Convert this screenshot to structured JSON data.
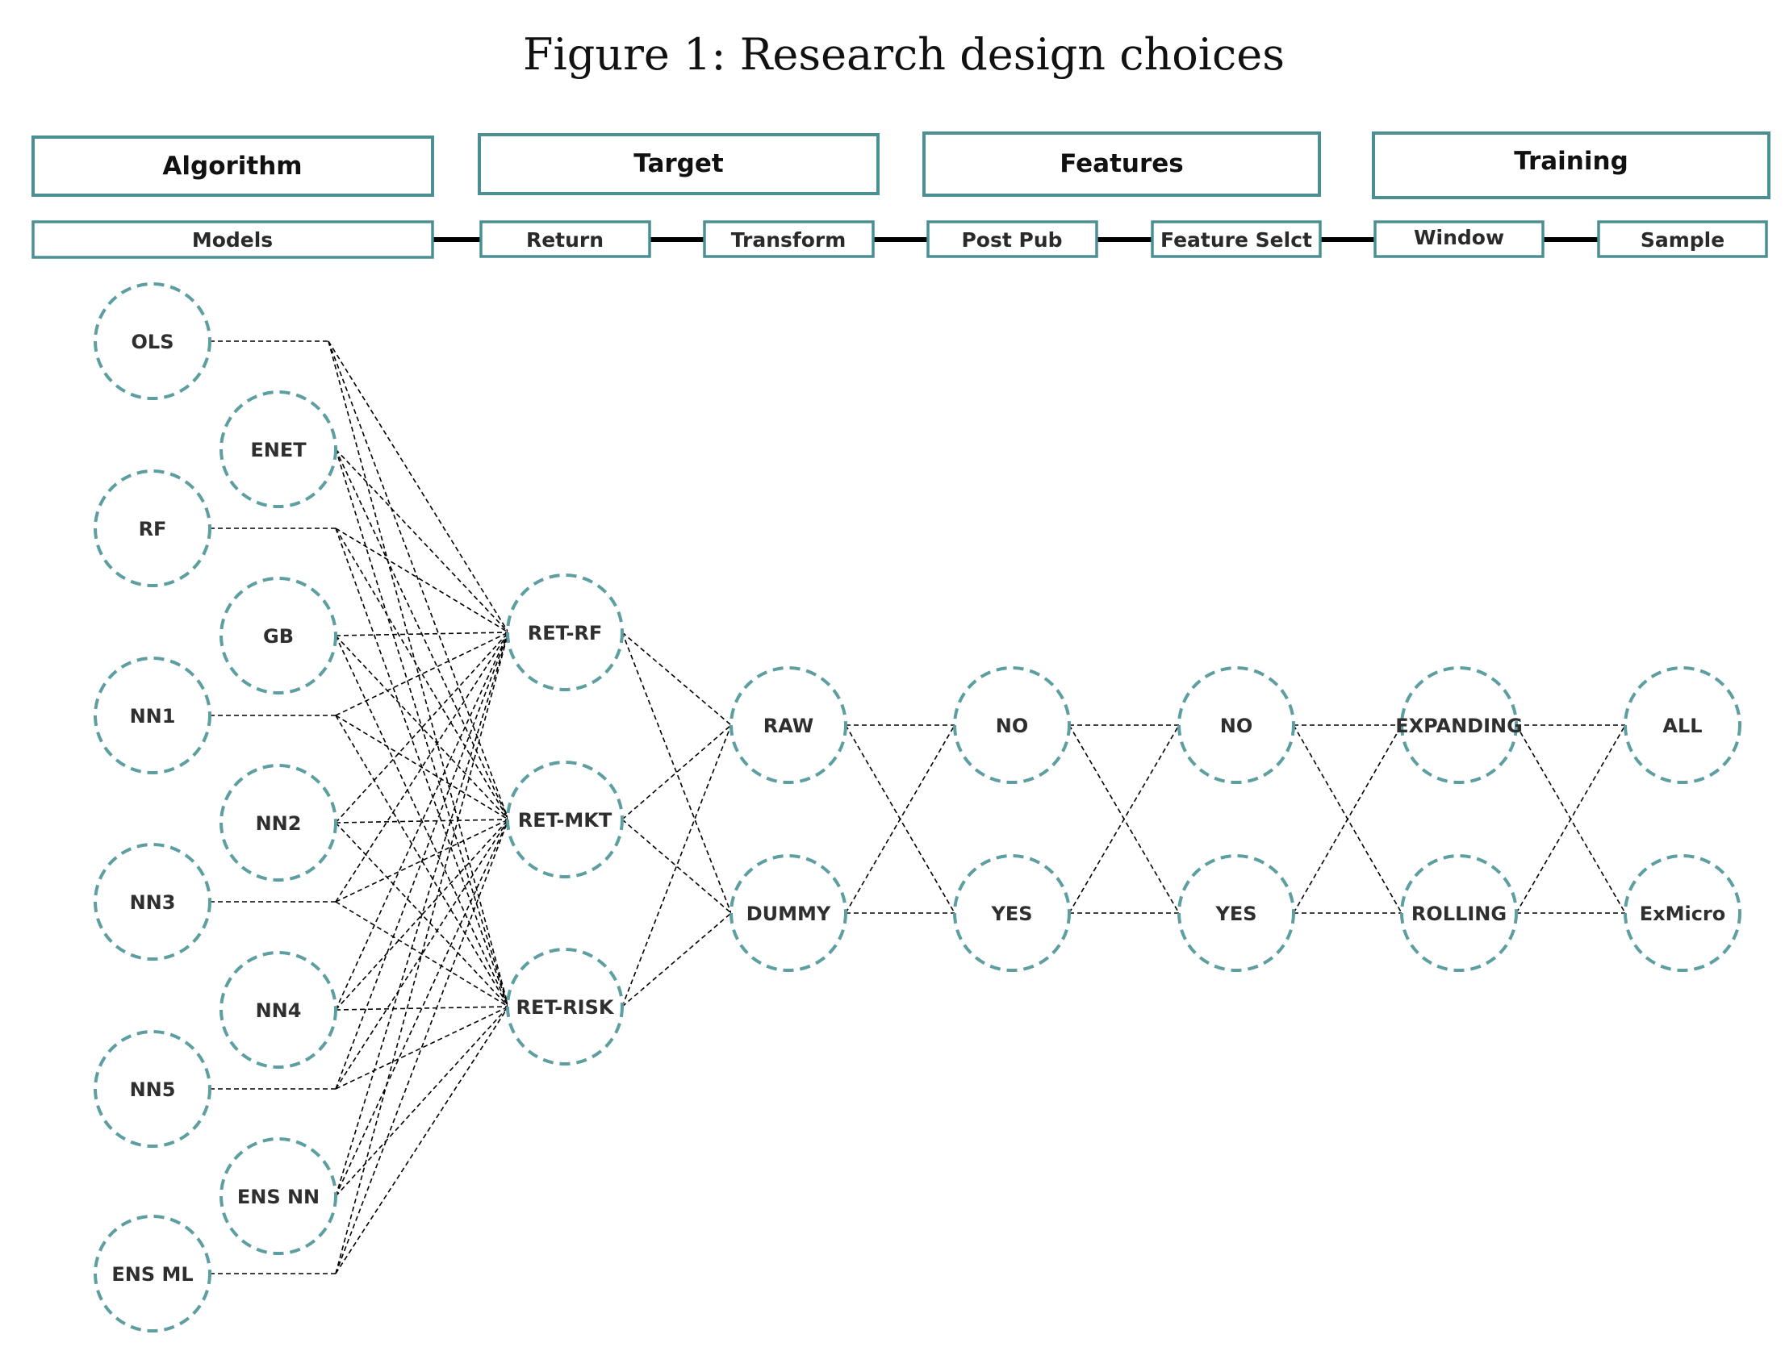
{
  "title": "Figure 1: Research design choices",
  "colors": {
    "accent": "#4b8f92",
    "node_border": "#5d9ea1",
    "line": "#000000",
    "text": "#2f2f2f"
  },
  "categories": [
    {
      "label": "Algorithm",
      "subs": [
        "Models"
      ]
    },
    {
      "label": "Target",
      "subs": [
        "Return",
        "Transform"
      ]
    },
    {
      "label": "Features",
      "subs": [
        "Post Pub",
        "Feature Selct"
      ]
    },
    {
      "label": "Training",
      "subs": [
        "Window",
        "Sample"
      ]
    }
  ],
  "nodes": {
    "models": [
      "OLS",
      "ENET",
      "RF",
      "GB",
      "NN1",
      "NN2",
      "NN3",
      "NN4",
      "NN5",
      "ENS NN",
      "ENS ML"
    ],
    "return": [
      "RET-RF",
      "RET-MKT",
      "RET-RISK"
    ],
    "transform": [
      "RAW",
      "DUMMY"
    ],
    "post_pub": [
      "NO",
      "YES"
    ],
    "feature_selct": [
      "NO",
      "YES"
    ],
    "window": [
      "EXPANDING",
      "ROLLING"
    ],
    "sample": [
      "ALL",
      "ExMicro"
    ]
  }
}
